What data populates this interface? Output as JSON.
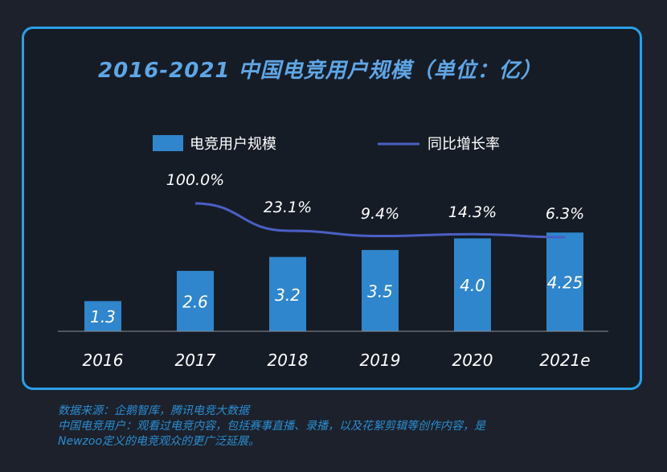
{
  "title": "2016-2021 中国电竞用户规模（单位：亿）",
  "legend": {
    "bar_label": "电竞用户规模",
    "line_label": "同比增长率"
  },
  "colors": {
    "bar": "#2f86cc",
    "line": "#4a5fc4",
    "frame": "#2a9fe8",
    "title": "#5fa6e6",
    "source": "#2b8dd2"
  },
  "chart_data": {
    "type": "bar",
    "categories": [
      "2016",
      "2017",
      "2018",
      "2019",
      "2020",
      "2021e"
    ],
    "series": [
      {
        "name": "电竞用户规模",
        "type": "bar",
        "values": [
          1.3,
          2.6,
          3.2,
          3.5,
          4.0,
          4.25
        ],
        "labels": [
          "1.3",
          "2.6",
          "3.2",
          "3.5",
          "4.0",
          "4.25"
        ]
      },
      {
        "name": "同比增长率",
        "type": "line",
        "values": [
          null,
          100.0,
          23.1,
          9.4,
          14.3,
          6.3
        ],
        "labels": [
          "",
          "100.0%",
          "23.1%",
          "9.4%",
          "14.3%",
          "6.3%"
        ]
      }
    ],
    "title": "2016-2021 中国电竞用户规模（单位：亿）",
    "ylim": [
      0,
      4.5
    ],
    "grid": false,
    "legend_position": "top-center"
  },
  "source_lines": [
    "数据来源：企鹅智库，腾讯电竞大数据",
    "中国电竞用户：观看过电竞内容，包括赛事直播、录播，以及花絮剪辑等创作内容，是",
    "Newzoo定义的电竞观众的更广泛延展。"
  ]
}
